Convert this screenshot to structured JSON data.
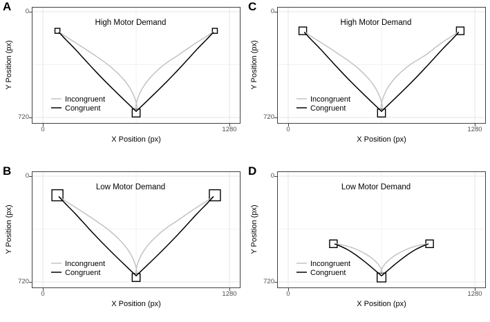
{
  "figure": {
    "background": "#ffffff",
    "colors": {
      "incongruent": "#c2c2c2",
      "congruent": "#000000",
      "grid_major": "#e6e6e6",
      "grid_minor": "#f2f2f2",
      "panel_border": "#404040",
      "tick_label": "#4d4d4d",
      "marker_fill": "#ffffff",
      "marker_stroke": "#000000"
    },
    "axes": {
      "x_label": "X Position (px)",
      "y_label": "Y Position (px)",
      "x_tick_labels": [
        "0",
        "1280"
      ],
      "y_tick_labels": [
        "0",
        "720"
      ],
      "x_range": [
        0,
        1280
      ],
      "y_range": [
        0,
        720
      ],
      "y_axis_reversed": true,
      "x_major_gridlines": [
        0,
        1280
      ],
      "x_minor_gridlines": [
        640
      ],
      "y_major_gridlines": [
        0,
        720
      ],
      "y_minor_gridlines": [
        360
      ],
      "grid": "on"
    }
  },
  "legend": {
    "position": "inside-bottom-left",
    "items": [
      {
        "label": "Incongruent",
        "series": "incongruent"
      },
      {
        "label": "Congruent",
        "series": "congruent"
      }
    ]
  },
  "chart_data": [
    {
      "panel": "A",
      "type": "line",
      "title": "High Motor Demand",
      "start_box": {
        "x": 640,
        "y": 690,
        "size": 54
      },
      "target_boxes": [
        {
          "x": 100,
          "y": 130,
          "size": 34
        },
        {
          "x": 1180,
          "y": 130,
          "size": 34
        }
      ],
      "series": [
        {
          "name": "Incongruent",
          "color": "incongruent",
          "trajectories": {
            "left": [
              [
                648,
                672
              ],
              [
                644,
                638
              ],
              [
                634,
                598
              ],
              [
                616,
                554
              ],
              [
                591,
                510
              ],
              [
                558,
                466
              ],
              [
                518,
                423
              ],
              [
                471,
                380
              ],
              [
                416,
                338
              ],
              [
                355,
                296
              ],
              [
                290,
                253
              ],
              [
                223,
                210
              ],
              [
                160,
                171
              ],
              [
                114,
                139
              ]
            ],
            "right": [
              [
                634,
                670
              ],
              [
                639,
                636
              ],
              [
                649,
                596
              ],
              [
                666,
                552
              ],
              [
                691,
                508
              ],
              [
                724,
                464
              ],
              [
                764,
                420
              ],
              [
                810,
                378
              ],
              [
                860,
                340
              ],
              [
                917,
                304
              ],
              [
                962,
                272
              ],
              [
                1004,
                244
              ],
              [
                1060,
                206
              ],
              [
                1120,
                170
              ],
              [
                1167,
                138
              ]
            ]
          }
        },
        {
          "name": "Congruent",
          "color": "congruent",
          "trajectories": {
            "left": [
              [
                640,
                678
              ],
              [
                570,
                612
              ],
              [
                500,
                545
              ],
              [
                430,
                476
              ],
              [
                360,
                404
              ],
              [
                291,
                330
              ],
              [
                223,
                256
              ],
              [
                158,
                190
              ],
              [
                112,
                141
              ]
            ],
            "right": [
              [
                640,
                678
              ],
              [
                710,
                612
              ],
              [
                780,
                545
              ],
              [
                850,
                476
              ],
              [
                920,
                404
              ],
              [
                989,
                330
              ],
              [
                1057,
                256
              ],
              [
                1122,
                190
              ],
              [
                1168,
                141
              ]
            ]
          }
        }
      ]
    },
    {
      "panel": "B",
      "type": "line",
      "title": "Low Motor Demand",
      "start_box": {
        "x": 640,
        "y": 690,
        "size": 54
      },
      "target_boxes": [
        {
          "x": 100,
          "y": 130,
          "size": 76
        },
        {
          "x": 1180,
          "y": 130,
          "size": 76
        }
      ],
      "series": [
        {
          "name": "Incongruent",
          "color": "incongruent",
          "trajectories": {
            "left": [
              [
                647,
                673
              ],
              [
                643,
                639
              ],
              [
                633,
                599
              ],
              [
                615,
                555
              ],
              [
                590,
                511
              ],
              [
                557,
                467
              ],
              [
                517,
                424
              ],
              [
                470,
                381
              ],
              [
                415,
                339
              ],
              [
                354,
                297
              ],
              [
                289,
                254
              ],
              [
                222,
                211
              ],
              [
                159,
                172
              ],
              [
                113,
                140
              ]
            ],
            "right": [
              [
                635,
                671
              ],
              [
                640,
                637
              ],
              [
                650,
                597
              ],
              [
                667,
                553
              ],
              [
                692,
                509
              ],
              [
                725,
                465
              ],
              [
                766,
                422
              ],
              [
                812,
                380
              ],
              [
                862,
                342
              ],
              [
                918,
                306
              ],
              [
                964,
                274
              ],
              [
                1006,
                246
              ],
              [
                1062,
                208
              ],
              [
                1122,
                171
              ],
              [
                1168,
                139
              ]
            ]
          }
        },
        {
          "name": "Congruent",
          "color": "congruent",
          "trajectories": {
            "left": [
              [
                640,
                678
              ],
              [
                569,
                611
              ],
              [
                499,
                544
              ],
              [
                429,
                475
              ],
              [
                359,
                403
              ],
              [
                290,
                329
              ],
              [
                222,
                255
              ],
              [
                157,
                189
              ],
              [
                111,
                140
              ]
            ],
            "right": [
              [
                640,
                678
              ],
              [
                711,
                611
              ],
              [
                781,
                544
              ],
              [
                851,
                475
              ],
              [
                921,
                403
              ],
              [
                990,
                329
              ],
              [
                1058,
                255
              ],
              [
                1123,
                189
              ],
              [
                1169,
                140
              ]
            ]
          }
        }
      ]
    },
    {
      "panel": "C",
      "type": "line",
      "title": "High Motor Demand",
      "start_box": {
        "x": 640,
        "y": 690,
        "size": 54
      },
      "target_boxes": [
        {
          "x": 100,
          "y": 130,
          "size": 52
        },
        {
          "x": 1180,
          "y": 130,
          "size": 52
        }
      ],
      "series": [
        {
          "name": "Incongruent",
          "color": "incongruent",
          "trajectories": {
            "left": [
              [
                649,
                671
              ],
              [
                645,
                637
              ],
              [
                635,
                597
              ],
              [
                617,
                553
              ],
              [
                592,
                509
              ],
              [
                559,
                465
              ],
              [
                519,
                422
              ],
              [
                472,
                379
              ],
              [
                417,
                337
              ],
              [
                356,
                295
              ],
              [
                291,
                252
              ],
              [
                224,
                209
              ],
              [
                161,
                170
              ],
              [
                115,
                138
              ]
            ],
            "right": [
              [
                633,
                669
              ],
              [
                638,
                635
              ],
              [
                648,
                595
              ],
              [
                665,
                551
              ],
              [
                690,
                507
              ],
              [
                723,
                463
              ],
              [
                762,
                422
              ],
              [
                806,
                384
              ],
              [
                852,
                350
              ],
              [
                905,
                318
              ],
              [
                950,
                290
              ],
              [
                986,
                262
              ],
              [
                1030,
                228
              ],
              [
                1082,
                192
              ],
              [
                1130,
                162
              ],
              [
                1168,
                137
              ]
            ]
          }
        },
        {
          "name": "Congruent",
          "color": "congruent",
          "trajectories": {
            "left": [
              [
                640,
                678
              ],
              [
                570,
                612
              ],
              [
                500,
                545
              ],
              [
                430,
                476
              ],
              [
                360,
                404
              ],
              [
                291,
                330
              ],
              [
                223,
                256
              ],
              [
                158,
                190
              ],
              [
                112,
                141
              ]
            ],
            "right": [
              [
                640,
                678
              ],
              [
                710,
                612
              ],
              [
                780,
                545
              ],
              [
                850,
                476
              ],
              [
                920,
                404
              ],
              [
                989,
                330
              ],
              [
                1057,
                256
              ],
              [
                1122,
                190
              ],
              [
                1168,
                141
              ]
            ]
          }
        }
      ]
    },
    {
      "panel": "D",
      "type": "line",
      "title": "Low Motor Demand",
      "start_box": {
        "x": 640,
        "y": 690,
        "size": 60
      },
      "target_boxes": [
        {
          "x": 310,
          "y": 460,
          "size": 52
        },
        {
          "x": 970,
          "y": 460,
          "size": 52
        }
      ],
      "series": [
        {
          "name": "Incongruent",
          "color": "incongruent",
          "trajectories": {
            "left": [
              [
                650,
                676
              ],
              [
                646,
                655
              ],
              [
                637,
                630
              ],
              [
                621,
                604
              ],
              [
                597,
                578
              ],
              [
                566,
                552
              ],
              [
                528,
                528
              ],
              [
                486,
                506
              ],
              [
                442,
                488
              ],
              [
                396,
                474
              ],
              [
                350,
                465
              ],
              [
                328,
                462
              ]
            ],
            "right": [
              [
                630,
                676
              ],
              [
                634,
                655
              ],
              [
                643,
                630
              ],
              [
                659,
                604
              ],
              [
                683,
                578
              ],
              [
                714,
                552
              ],
              [
                752,
                528
              ],
              [
                794,
                506
              ],
              [
                838,
                488
              ],
              [
                884,
                474
              ],
              [
                930,
                465
              ],
              [
                952,
                462
              ]
            ]
          }
        },
        {
          "name": "Congruent",
          "color": "congruent",
          "trajectories": {
            "left": [
              [
                640,
                678
              ],
              [
                585,
                632
              ],
              [
                525,
                582
              ],
              [
                465,
                537
              ],
              [
                405,
                499
              ],
              [
                350,
                473
              ],
              [
                320,
                462
              ]
            ],
            "right": [
              [
                640,
                678
              ],
              [
                695,
                632
              ],
              [
                755,
                582
              ],
              [
                815,
                537
              ],
              [
                875,
                499
              ],
              [
                930,
                473
              ],
              [
                960,
                462
              ]
            ]
          }
        }
      ]
    }
  ]
}
